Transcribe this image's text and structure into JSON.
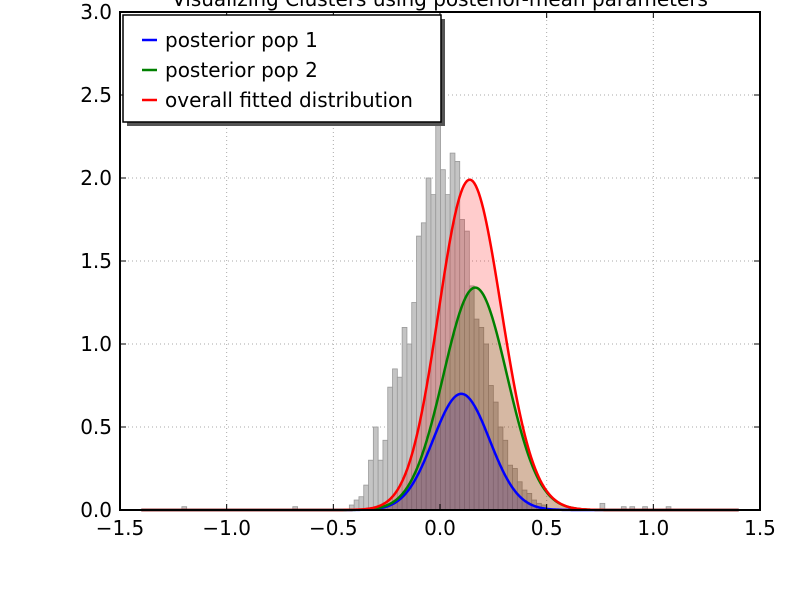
{
  "chart_data": {
    "type": "bar",
    "title": "Visualizing Clusters using posterior-mean parameters",
    "xlim": [
      -1.5,
      1.5
    ],
    "ylim": [
      0.0,
      3.0
    ],
    "xticks": [
      -1.5,
      -1.0,
      -0.5,
      0.0,
      0.5,
      1.0,
      1.5
    ],
    "yticks": [
      0.0,
      0.5,
      1.0,
      1.5,
      2.0,
      2.5,
      3.0
    ],
    "xtick_labels": [
      "−1.5",
      "−1.0",
      "−0.5",
      "0.0",
      "0.5",
      "1.0",
      "1.5"
    ],
    "ytick_labels": [
      "0.0",
      "0.5",
      "1.0",
      "1.5",
      "2.0",
      "2.5",
      "3.0"
    ],
    "grid": true,
    "legend_position": "top-left",
    "histogram": {
      "bin_start": -0.425,
      "bin_width": 0.0225,
      "heights": [
        0.03,
        0.06,
        0.08,
        0.15,
        0.3,
        0.5,
        0.3,
        0.42,
        0.74,
        0.85,
        0.8,
        1.1,
        1.0,
        1.25,
        1.65,
        1.73,
        2.0,
        1.9,
        2.6,
        2.05,
        1.9,
        2.15,
        2.1,
        1.75,
        1.68,
        1.35,
        1.15,
        1.1,
        1.0,
        0.75,
        0.65,
        0.5,
        0.42,
        0.27,
        0.25,
        0.17,
        0.12,
        0.1,
        0.06,
        0.04,
        0.03
      ],
      "outliers": [
        {
          "x": -1.21,
          "height": 0.02
        },
        {
          "x": -0.69,
          "height": 0.02
        },
        {
          "x": 0.75,
          "height": 0.04
        },
        {
          "x": 0.85,
          "height": 0.02
        },
        {
          "x": 0.89,
          "height": 0.02
        },
        {
          "x": 0.95,
          "height": 0.02
        },
        {
          "x": 1.06,
          "height": 0.02
        }
      ]
    },
    "series": [
      {
        "name": "posterior pop 1",
        "color": "#0000ff",
        "mean": 0.1,
        "sigma": 0.132,
        "peak": 0.7
      },
      {
        "name": "posterior pop 2",
        "color": "#008000",
        "mean": 0.165,
        "sigma": 0.149,
        "peak": 1.34
      },
      {
        "name": "overall fitted distribution",
        "color": "#ff0000",
        "components": [
          0,
          1
        ]
      }
    ]
  }
}
